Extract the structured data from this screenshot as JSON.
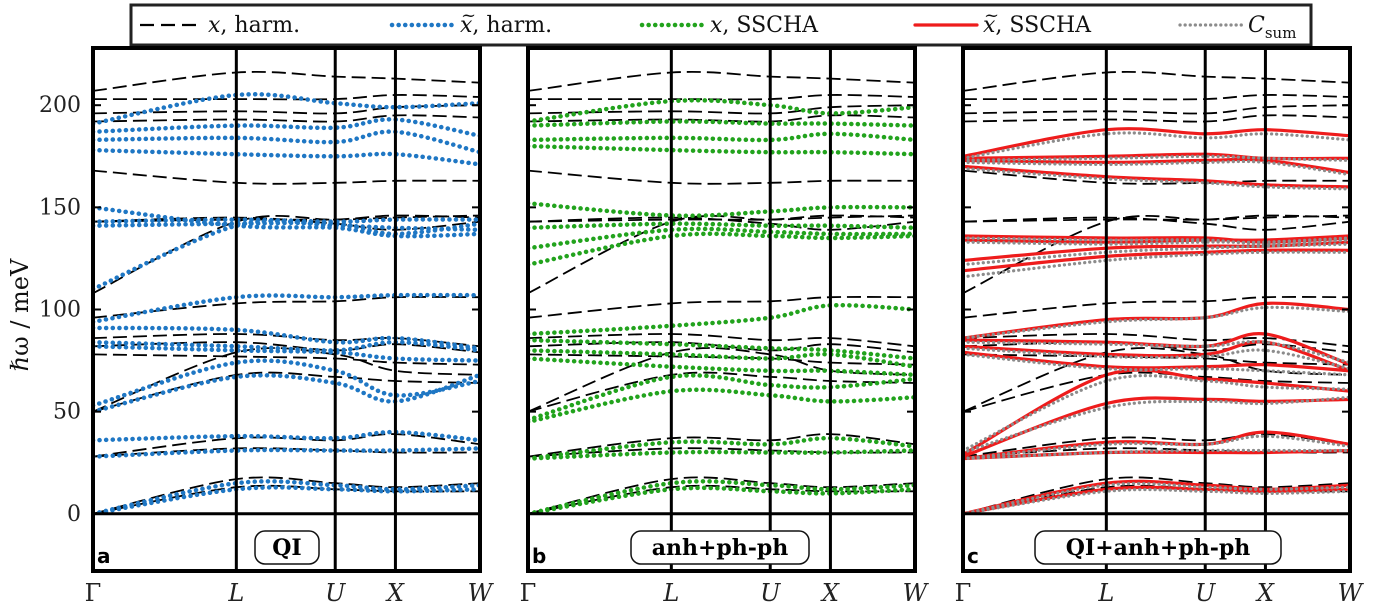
{
  "legend": {
    "items": [
      {
        "var": "x",
        "tilde": false,
        "rest": ", harm.",
        "color": "#000000",
        "style": "dashed"
      },
      {
        "var": "x",
        "tilde": true,
        "rest": ", harm.",
        "color": "#1f77c4",
        "style": "dotted"
      },
      {
        "var": "x",
        "tilde": false,
        "rest": ", SSCHA",
        "color": "#22a31d",
        "style": "dotted"
      },
      {
        "var": "x",
        "tilde": true,
        "rest": ", SSCHA",
        "color": "#ee1c1c",
        "style": "solid"
      },
      {
        "var": "C",
        "tilde": false,
        "sub": "sum",
        "rest": "",
        "color": "#8c8c8c",
        "style": "dotted"
      }
    ]
  },
  "ylabel": "ℏω / meV",
  "colors": {
    "harm": "#000000",
    "qi": "#1f77c4",
    "anh": "#22a31d",
    "sscha": "#ee1c1c",
    "csum": "#8c8c8c"
  },
  "chart_data": [
    {
      "type": "line",
      "panel": "a",
      "title": "QI",
      "xticks": [
        "Γ",
        "L",
        "U",
        "X",
        "W"
      ],
      "xtick_positions": [
        0,
        1,
        1.69,
        2.11,
        2.7
      ],
      "ylim": [
        -28,
        228
      ],
      "yticks": [
        0,
        50,
        100,
        150,
        200
      ],
      "ylabel": "ℏω / meV",
      "series": [
        {
          "style": "harm",
          "x": [
            0,
            1,
            1.69,
            2.11,
            2.7
          ],
          "branches": [
            [
              0,
              13,
              12,
              11,
              11
            ],
            [
              0,
              17,
              15,
              13,
              15
            ],
            [
              28,
              32,
              31,
              30,
              30
            ],
            [
              28,
              37,
              36,
              39,
              34
            ],
            [
              50,
              68,
              67,
              65,
              64
            ],
            [
              50,
              79,
              78,
              70,
              68
            ],
            [
              78,
              77,
              76,
              74,
              73
            ],
            [
              82,
              84,
              80,
              83,
              79
            ],
            [
              86,
              88,
              85,
              86,
              82
            ],
            [
              96,
              103,
              104,
              106,
              106
            ],
            [
              108,
              143,
              144,
              146,
              145
            ],
            [
              143,
              145,
              142,
              139,
              143
            ],
            [
              143,
              144,
              144,
              145,
              146
            ],
            [
              168,
              162,
              162,
              163,
              163
            ],
            [
              192,
              193,
              192,
              195,
              194
            ],
            [
              196,
              197,
              196,
              199,
              200
            ],
            [
              203,
              203,
              203,
              205,
              204
            ],
            [
              207,
              216,
              214,
              213,
              211
            ]
          ]
        },
        {
          "style": "qi",
          "x": [
            0,
            1,
            1.69,
            2.11,
            2.7
          ],
          "branches": [
            [
              0,
              12,
              12,
              11,
              12
            ],
            [
              0,
              15,
              14,
              12,
              14
            ],
            [
              28,
              31,
              31,
              31,
              32
            ],
            [
              36,
              38,
              37,
              40,
              36
            ],
            [
              50,
              67,
              64,
              55,
              68
            ],
            [
              53,
              74,
              70,
              58,
              65
            ],
            [
              82,
              80,
              79,
              76,
              75
            ],
            [
              84,
              82,
              80,
              84,
              80
            ],
            [
              91,
              90,
              84,
              86,
              81
            ],
            [
              94,
              106,
              106,
              107,
              107
            ],
            [
              110,
              141,
              141,
              140,
              139
            ],
            [
              141,
              142,
              142,
              137,
              142
            ],
            [
              143,
              144,
              143,
              144,
              144
            ],
            [
              150,
              141,
              140,
              136,
              137
            ],
            [
              178,
              176,
              175,
              176,
              171
            ],
            [
              183,
              184,
              182,
              187,
              177
            ],
            [
              187,
              190,
              189,
              193,
              185
            ],
            [
              191,
              205,
              201,
              199,
              201
            ]
          ]
        }
      ]
    },
    {
      "type": "line",
      "panel": "b",
      "title": "anh+ph-ph",
      "xticks": [
        "Γ",
        "L",
        "U",
        "X",
        "W"
      ],
      "xtick_positions": [
        0,
        1,
        1.69,
        2.11,
        2.7
      ],
      "ylim": [
        -28,
        228
      ],
      "yticks": [
        0,
        50,
        100,
        150,
        200
      ],
      "series": [
        {
          "style": "harm",
          "x": [
            0,
            1,
            1.69,
            2.11,
            2.7
          ],
          "branches": [
            [
              0,
              13,
              12,
              11,
              11
            ],
            [
              0,
              17,
              15,
              13,
              15
            ],
            [
              28,
              32,
              31,
              30,
              30
            ],
            [
              28,
              37,
              36,
              39,
              34
            ],
            [
              50,
              68,
              67,
              65,
              64
            ],
            [
              50,
              79,
              78,
              70,
              68
            ],
            [
              78,
              77,
              76,
              74,
              73
            ],
            [
              82,
              84,
              80,
              83,
              79
            ],
            [
              86,
              88,
              85,
              86,
              82
            ],
            [
              96,
              103,
              104,
              106,
              106
            ],
            [
              108,
              143,
              144,
              146,
              145
            ],
            [
              143,
              145,
              142,
              139,
              143
            ],
            [
              143,
              144,
              144,
              145,
              146
            ],
            [
              168,
              162,
              162,
              163,
              163
            ],
            [
              192,
              193,
              192,
              195,
              194
            ],
            [
              196,
              197,
              196,
              199,
              200
            ],
            [
              203,
              203,
              203,
              205,
              204
            ],
            [
              207,
              216,
              214,
              213,
              211
            ]
          ]
        },
        {
          "style": "anh",
          "x": [
            0,
            1,
            1.69,
            2.11,
            2.7
          ],
          "branches": [
            [
              0,
              12,
              11,
              10,
              12
            ],
            [
              0,
              15,
              14,
              12,
              14
            ],
            [
              27,
              30,
              30,
              30,
              31
            ],
            [
              27,
              35,
              34,
              37,
              33
            ],
            [
              45,
              60,
              58,
              55,
              57
            ],
            [
              46,
              67,
              63,
              62,
              66
            ],
            [
              76,
              72,
              70,
              70,
              68
            ],
            [
              80,
              78,
              76,
              78,
              72
            ],
            [
              85,
              83,
              81,
              80,
              76
            ],
            [
              88,
              92,
              96,
              102,
              100
            ],
            [
              122,
              136,
              136,
              135,
              136
            ],
            [
              130,
              139,
              138,
              137,
              137
            ],
            [
              140,
              142,
              141,
              141,
              140
            ],
            [
              152,
              146,
              148,
              150,
              150
            ],
            [
              180,
              178,
              177,
              177,
              176
            ],
            [
              183,
              184,
              183,
              186,
              183
            ],
            [
              190,
              192,
              191,
              191,
              190
            ],
            [
              192,
              202,
              200,
              196,
              199
            ]
          ]
        }
      ]
    },
    {
      "type": "line",
      "panel": "c",
      "title": "QI+anh+ph-ph",
      "xticks": [
        "Γ",
        "L",
        "U",
        "X",
        "W"
      ],
      "xtick_positions": [
        0,
        1,
        1.69,
        2.11,
        2.7
      ],
      "ylim": [
        -28,
        228
      ],
      "yticks": [
        0,
        50,
        100,
        150,
        200
      ],
      "series": [
        {
          "style": "harm",
          "x": [
            0,
            1,
            1.69,
            2.11,
            2.7
          ],
          "branches": [
            [
              0,
              13,
              12,
              11,
              11
            ],
            [
              0,
              17,
              15,
              13,
              15
            ],
            [
              28,
              32,
              31,
              30,
              30
            ],
            [
              28,
              37,
              36,
              39,
              34
            ],
            [
              50,
              68,
              67,
              65,
              64
            ],
            [
              50,
              79,
              78,
              70,
              68
            ],
            [
              78,
              77,
              76,
              74,
              73
            ],
            [
              82,
              84,
              80,
              83,
              79
            ],
            [
              86,
              88,
              85,
              86,
              82
            ],
            [
              96,
              103,
              104,
              106,
              106
            ],
            [
              108,
              143,
              144,
              146,
              145
            ],
            [
              143,
              145,
              142,
              139,
              143
            ],
            [
              143,
              144,
              144,
              145,
              146
            ],
            [
              168,
              162,
              162,
              163,
              163
            ],
            [
              192,
              193,
              192,
              195,
              194
            ],
            [
              196,
              197,
              196,
              199,
              200
            ],
            [
              203,
              203,
              203,
              205,
              204
            ],
            [
              207,
              216,
              214,
              213,
              211
            ]
          ]
        },
        {
          "style": "sscha",
          "x": [
            0,
            1,
            1.69,
            2.11,
            2.7
          ],
          "branches": [
            [
              0,
              12,
              12,
              11,
              12
            ],
            [
              0,
              15,
              14,
              12,
              14
            ],
            [
              27,
              30,
              30,
              30,
              31
            ],
            [
              27,
              35,
              34,
              40,
              34
            ],
            [
              28,
              54,
              56,
              55,
              56
            ],
            [
              29,
              68,
              66,
              64,
              60
            ],
            [
              79,
              72,
              72,
              73,
              70
            ],
            [
              82,
              78,
              78,
              84,
              70
            ],
            [
              85,
              84,
              82,
              88,
              73
            ],
            [
              86,
              95,
              96,
              103,
              100
            ],
            [
              119,
              126,
              128,
              129,
              129
            ],
            [
              124,
              130,
              131,
              131,
              133
            ],
            [
              134,
              133,
              134,
              134,
              136
            ],
            [
              136,
              135,
              135,
              133,
              135
            ],
            [
              170,
              165,
              163,
              161,
              160
            ],
            [
              173,
              172,
              173,
              173,
              167
            ],
            [
              174,
              175,
              176,
              174,
              174
            ],
            [
              175,
              188,
              186,
              188,
              185
            ]
          ]
        },
        {
          "style": "csum",
          "x": [
            0,
            1,
            1.69,
            2.11,
            2.7
          ],
          "branches": [
            [
              0,
              11,
              11,
              10,
              11
            ],
            [
              0,
              14,
              13,
              12,
              13
            ],
            [
              27,
              30,
              31,
              31,
              31
            ],
            [
              27,
              34,
              34,
              38,
              33
            ],
            [
              30,
              52,
              55,
              54,
              57
            ],
            [
              31,
              65,
              65,
              62,
              61
            ],
            [
              78,
              71,
              71,
              70,
              68
            ],
            [
              81,
              77,
              77,
              80,
              71
            ],
            [
              84,
              83,
              82,
              84,
              74
            ],
            [
              86,
              94,
              96,
              101,
              99
            ],
            [
              116,
              124,
              127,
              128,
              128
            ],
            [
              122,
              128,
              130,
              131,
              132
            ],
            [
              133,
              132,
              133,
              133,
              135
            ],
            [
              135,
              134,
              134,
              132,
              134
            ],
            [
              169,
              164,
              162,
              160,
              159
            ],
            [
              172,
              171,
              172,
              172,
              166
            ],
            [
              173,
              174,
              175,
              174,
              173
            ],
            [
              174,
              186,
              184,
              186,
              183
            ]
          ]
        }
      ]
    }
  ]
}
